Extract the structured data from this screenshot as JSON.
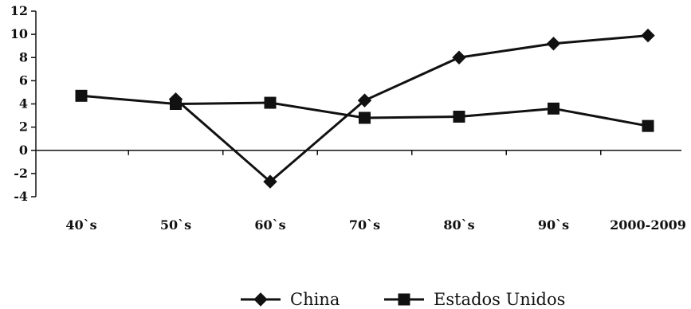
{
  "chart_data": {
    "type": "line",
    "categories": [
      "40`s",
      "50`s",
      "60`s",
      "70`s",
      "80`s",
      "90`s",
      "2000-2009"
    ],
    "series": [
      {
        "name": "China",
        "marker": "diamond",
        "values": [
          null,
          4.4,
          -2.7,
          4.3,
          8.0,
          9.2,
          9.9
        ]
      },
      {
        "name": "Estados Unidos",
        "marker": "square",
        "values": [
          4.7,
          4.0,
          4.1,
          2.8,
          2.9,
          3.6,
          2.1
        ]
      }
    ],
    "ylim": [
      -4,
      12
    ],
    "yticks": [
      -4,
      -2,
      0,
      2,
      4,
      6,
      8,
      10,
      12
    ],
    "ytick_labels": [
      "-4",
      "-2",
      "0",
      "2",
      "4",
      "6",
      "8",
      "10",
      "12"
    ],
    "grid": false,
    "legend_position": "bottom",
    "colors": {
      "line": "#111111",
      "marker": "#111111"
    }
  }
}
